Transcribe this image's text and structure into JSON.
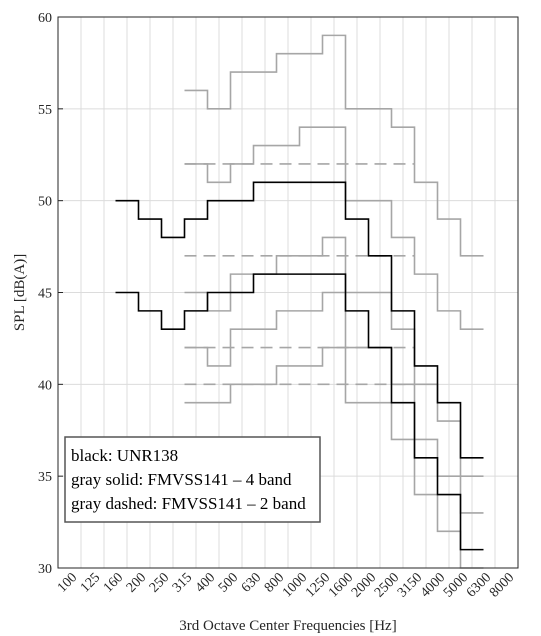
{
  "chart_data": {
    "type": "line",
    "xlabel": "3rd Octave Center Frequencies [Hz]",
    "ylabel": "SPL [dB(A)]",
    "x_categories": [
      "100",
      "125",
      "160",
      "200",
      "250",
      "315",
      "400",
      "500",
      "630",
      "800",
      "1000",
      "1250",
      "1600",
      "2000",
      "2500",
      "3150",
      "4000",
      "5000",
      "6300",
      "8000"
    ],
    "ylim": [
      30,
      60
    ],
    "yticks": [
      30,
      35,
      40,
      45,
      50,
      55,
      60
    ],
    "grid": true,
    "legend": {
      "placement": "bottom-left",
      "lines": [
        "black: UNR138",
        "gray solid: FMVSS141 – 4 band",
        "gray dashed: FMVSS141 – 2 band"
      ]
    },
    "series": [
      {
        "style": "black-solid",
        "x": [
          "160",
          "200",
          "250",
          "315",
          "400",
          "500",
          "630",
          "800",
          "1000",
          "1250",
          "1600",
          "2000",
          "2500",
          "3150",
          "4000",
          "5000"
        ],
        "values": [
          50,
          49,
          48,
          49,
          50,
          50,
          51,
          51,
          51,
          51,
          49,
          47,
          44,
          41,
          39,
          36
        ]
      },
      {
        "style": "black-solid",
        "x": [
          "160",
          "200",
          "250",
          "315",
          "400",
          "500",
          "630",
          "800",
          "1000",
          "1250",
          "1600",
          "2000",
          "2500",
          "3150",
          "4000",
          "5000"
        ],
        "values": [
          45,
          44,
          43,
          44,
          45,
          45,
          46,
          46,
          46,
          46,
          44,
          42,
          39,
          36,
          34,
          31
        ]
      },
      {
        "style": "gray-solid",
        "x": [
          "315",
          "400",
          "500",
          "630",
          "800",
          "1000",
          "1250",
          "1600",
          "2000",
          "2500",
          "3150",
          "4000",
          "5000"
        ],
        "values": [
          56,
          55,
          57,
          57,
          58,
          58,
          59,
          55,
          55,
          54,
          51,
          49,
          47
        ]
      },
      {
        "style": "gray-solid",
        "x": [
          "315",
          "400",
          "500",
          "630",
          "800",
          "1000",
          "1250",
          "1600",
          "2000",
          "2500",
          "3150",
          "4000",
          "5000"
        ],
        "values": [
          52,
          51,
          52,
          53,
          53,
          54,
          54,
          50,
          50,
          48,
          46,
          44,
          43
        ]
      },
      {
        "style": "gray-solid",
        "x": [
          "315",
          "400",
          "500",
          "630",
          "800",
          "1000",
          "1250",
          "1600",
          "2000",
          "2500",
          "3150",
          "4000",
          "5000"
        ],
        "values": [
          45,
          44,
          46,
          46,
          47,
          47,
          48,
          45,
          45,
          43,
          40,
          38,
          35
        ]
      },
      {
        "style": "gray-solid",
        "x": [
          "315",
          "400",
          "500",
          "630",
          "800",
          "1000",
          "1250",
          "1600",
          "2000",
          "2500",
          "3150",
          "4000",
          "5000"
        ],
        "values": [
          42,
          41,
          43,
          43,
          44,
          44,
          45,
          42,
          42,
          40,
          37,
          35,
          33
        ]
      },
      {
        "style": "gray-solid",
        "x": [
          "315",
          "400",
          "500",
          "630",
          "800",
          "1000",
          "1250",
          "1600",
          "2000",
          "2500",
          "3150",
          "4000",
          "5000"
        ],
        "values": [
          39,
          39,
          40,
          40,
          41,
          41,
          42,
          39,
          39,
          37,
          34,
          32,
          30
        ]
      },
      {
        "style": "gray-dashed",
        "x": [
          "315",
          "3150"
        ],
        "values": [
          52,
          52
        ]
      },
      {
        "style": "gray-dashed",
        "x": [
          "315",
          "3150"
        ],
        "values": [
          47,
          47
        ]
      },
      {
        "style": "gray-dashed",
        "x": [
          "315",
          "3150"
        ],
        "values": [
          42,
          42
        ]
      },
      {
        "style": "gray-dashed",
        "x": [
          "315",
          "3150"
        ],
        "values": [
          40,
          40
        ]
      }
    ],
    "colors": {
      "black": "#000000",
      "gray": "#a6a6a6",
      "grid": "#dcdcdc"
    }
  }
}
